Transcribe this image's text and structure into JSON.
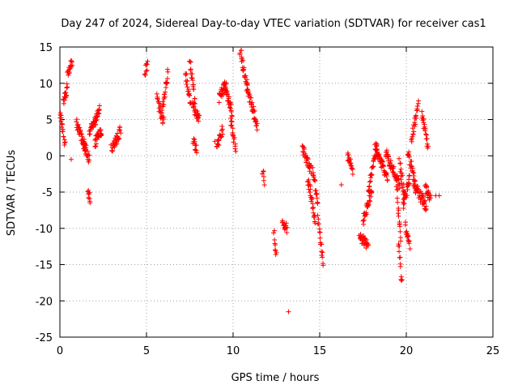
{
  "chart_data": {
    "type": "scatter",
    "title": "Day 247 of 2024, Sidereal Day-to-day VTEC variation (SDTVAR) for receiver cas1",
    "xlabel": "GPS time / hours",
    "ylabel": "SDTVAR / TECUs",
    "xlim": [
      0,
      25
    ],
    "ylim": [
      -25,
      15
    ],
    "xticks": [
      "0",
      "5",
      "10",
      "15",
      "20",
      "25"
    ],
    "yticks": [
      "15",
      "10",
      "5",
      "0",
      "-5",
      "-10",
      "-15",
      "-20",
      "-25"
    ],
    "grid": true,
    "marker": "+",
    "color": "#ff0000",
    "clusters": [
      {
        "t0": 0.0,
        "t1": 0.3,
        "v0": 6.0,
        "v1": 1.5
      },
      {
        "t0": 0.2,
        "t1": 0.45,
        "v0": 7.5,
        "v1": 9.5
      },
      {
        "t0": 0.45,
        "t1": 0.7,
        "v0": 11.5,
        "v1": 13.0
      },
      {
        "t0": 0.95,
        "t1": 1.5,
        "v0": 4.5,
        "v1": 1.0
      },
      {
        "t0": 1.3,
        "t1": 1.7,
        "v0": 2.0,
        "v1": -0.5
      },
      {
        "t0": 1.6,
        "t1": 1.75,
        "v0": -5.0,
        "v1": -6.0
      },
      {
        "t0": 1.7,
        "t1": 2.3,
        "v0": 3.0,
        "v1": 6.5
      },
      {
        "t0": 2.0,
        "t1": 2.4,
        "v0": 1.8,
        "v1": 3.5
      },
      {
        "t0": 3.0,
        "t1": 3.5,
        "v0": 0.8,
        "v1": 3.5
      },
      {
        "t0": 4.9,
        "t1": 5.05,
        "v0": 11.5,
        "v1": 12.5
      },
      {
        "t0": 5.6,
        "t1": 6.0,
        "v0": 8.0,
        "v1": 4.5
      },
      {
        "t0": 5.9,
        "t1": 6.25,
        "v0": 6.0,
        "v1": 11.5
      },
      {
        "t0": 7.25,
        "t1": 7.55,
        "v0": 11.5,
        "v1": 7.0
      },
      {
        "t0": 7.5,
        "t1": 7.8,
        "v0": 13.0,
        "v1": 7.5
      },
      {
        "t0": 7.65,
        "t1": 8.05,
        "v0": 7.0,
        "v1": 5.0
      },
      {
        "t0": 7.7,
        "t1": 7.9,
        "v0": 2.0,
        "v1": 1.0
      },
      {
        "t0": 9.05,
        "t1": 9.4,
        "v0": 1.5,
        "v1": 3.5
      },
      {
        "t0": 9.2,
        "t1": 9.6,
        "v0": 8.0,
        "v1": 10.0
      },
      {
        "t0": 9.5,
        "t1": 9.95,
        "v0": 9.5,
        "v1": 6.0
      },
      {
        "t0": 9.85,
        "t1": 10.15,
        "v0": 5.0,
        "v1": 1.0
      },
      {
        "t0": 10.4,
        "t1": 10.85,
        "v0": 14.5,
        "v1": 9.0
      },
      {
        "t0": 10.8,
        "t1": 11.3,
        "v0": 9.5,
        "v1": 5.0
      },
      {
        "t0": 11.3,
        "t1": 11.4,
        "v0": 5.5,
        "v1": 3.5
      },
      {
        "t0": 11.7,
        "t1": 11.8,
        "v0": -2.0,
        "v1": -3.5
      },
      {
        "t0": 12.35,
        "t1": 12.5,
        "v0": -10.5,
        "v1": -14.0
      },
      {
        "t0": 12.85,
        "t1": 13.1,
        "v0": -9.0,
        "v1": -10.0
      },
      {
        "t0": 14.0,
        "t1": 14.5,
        "v0": 1.0,
        "v1": -2.0
      },
      {
        "t0": 14.3,
        "t1": 14.75,
        "v0": -3.0,
        "v1": -9.0
      },
      {
        "t0": 14.6,
        "t1": 14.9,
        "v0": -1.5,
        "v1": -7.0
      },
      {
        "t0": 14.9,
        "t1": 15.2,
        "v0": -8.5,
        "v1": -15.0
      },
      {
        "t0": 16.6,
        "t1": 16.9,
        "v0": 0.0,
        "v1": -2.0
      },
      {
        "t0": 17.3,
        "t1": 17.8,
        "v0": -11.0,
        "v1": -12.5
      },
      {
        "t0": 17.5,
        "t1": 18.0,
        "v0": -9.0,
        "v1": -5.0
      },
      {
        "t0": 17.8,
        "t1": 18.3,
        "v0": -5.0,
        "v1": 1.5
      },
      {
        "t0": 18.2,
        "t1": 18.9,
        "v0": 1.0,
        "v1": -3.0
      },
      {
        "t0": 18.8,
        "t1": 19.6,
        "v0": 0.5,
        "v1": -4.0
      },
      {
        "t0": 19.4,
        "t1": 19.7,
        "v0": -3.0,
        "v1": -12.0
      },
      {
        "t0": 19.55,
        "t1": 19.75,
        "v0": -12.0,
        "v1": -17.5
      },
      {
        "t0": 19.6,
        "t1": 19.9,
        "v0": -1.0,
        "v1": -5.5
      },
      {
        "t0": 19.8,
        "t1": 20.2,
        "v0": -7.0,
        "v1": -3.0
      },
      {
        "t0": 19.95,
        "t1": 20.2,
        "v0": -9.5,
        "v1": -12.5
      },
      {
        "t0": 20.1,
        "t1": 20.5,
        "v0": 0.5,
        "v1": -4.0
      },
      {
        "t0": 20.3,
        "t1": 20.7,
        "v0": 2.0,
        "v1": 7.5
      },
      {
        "t0": 20.45,
        "t1": 21.15,
        "v0": -4.0,
        "v1": -7.0
      },
      {
        "t0": 20.9,
        "t1": 21.25,
        "v0": 6.0,
        "v1": 1.0
      },
      {
        "t0": 21.1,
        "t1": 21.4,
        "v0": -4.5,
        "v1": -6.0
      }
    ],
    "isolated_points": [
      {
        "t": 0.65,
        "v": -0.5
      },
      {
        "t": 2.95,
        "v": 1.5
      },
      {
        "t": 8.95,
        "v": 2.0
      },
      {
        "t": 13.2,
        "v": -21.5
      },
      {
        "t": 16.25,
        "v": -4.0
      },
      {
        "t": 21.7,
        "v": -5.5
      },
      {
        "t": 21.9,
        "v": -5.5
      }
    ]
  }
}
